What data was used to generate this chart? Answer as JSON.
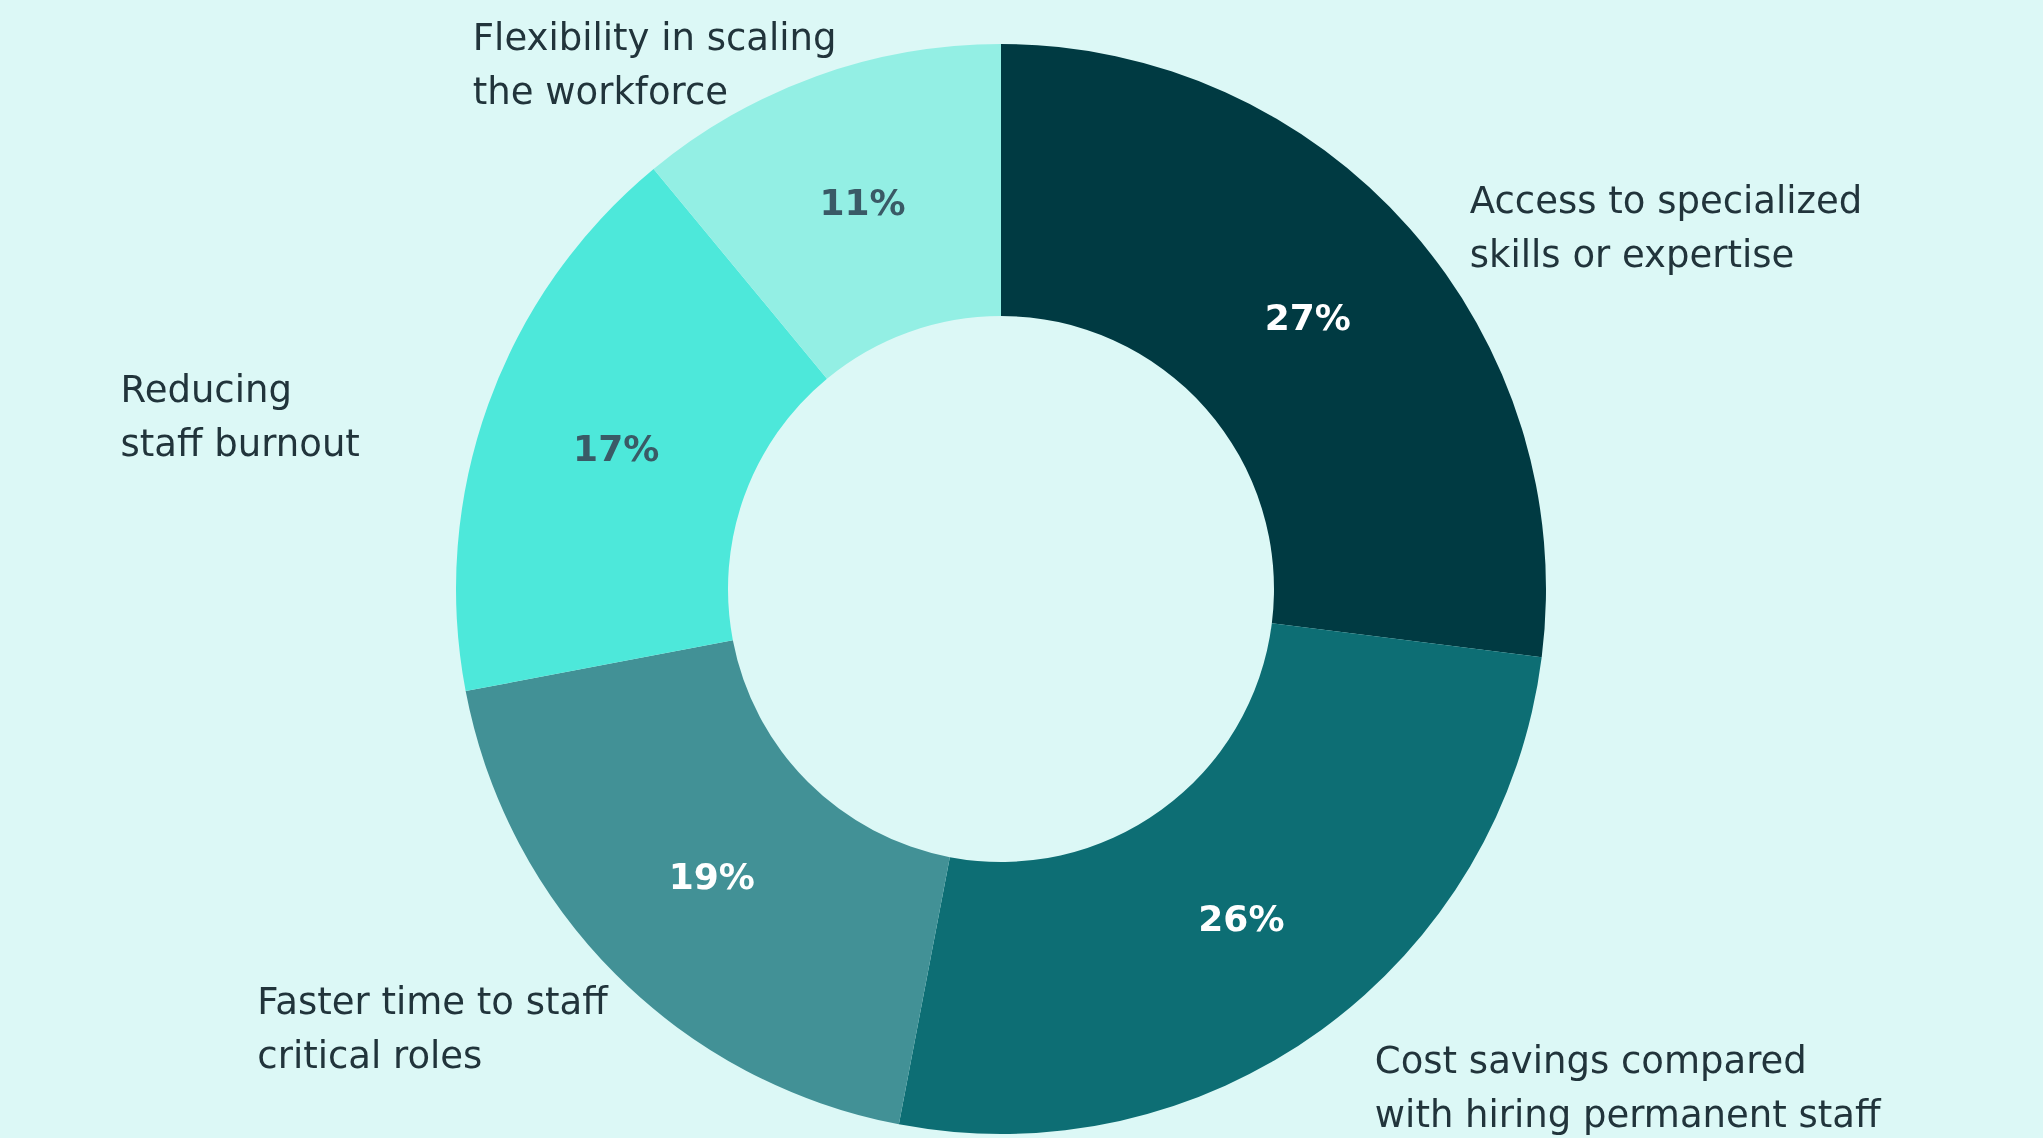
{
  "chart_data": {
    "type": "donut",
    "categories": [
      "Access to specialized\nskills or expertise",
      "Cost savings compared\nwith hiring permanent staff",
      "Faster time to staff\ncritical roles",
      "Reducing\nstaff burnout",
      "Flexibility in scaling\nthe workforce"
    ],
    "values": [
      27,
      26,
      19,
      17,
      11
    ],
    "colors": [
      "#003a42",
      "#0d6e74",
      "#429196",
      "#4de8da",
      "#93efe4"
    ],
    "value_labels": [
      "27%",
      "26%",
      "19%",
      "17%",
      "11%"
    ]
  }
}
